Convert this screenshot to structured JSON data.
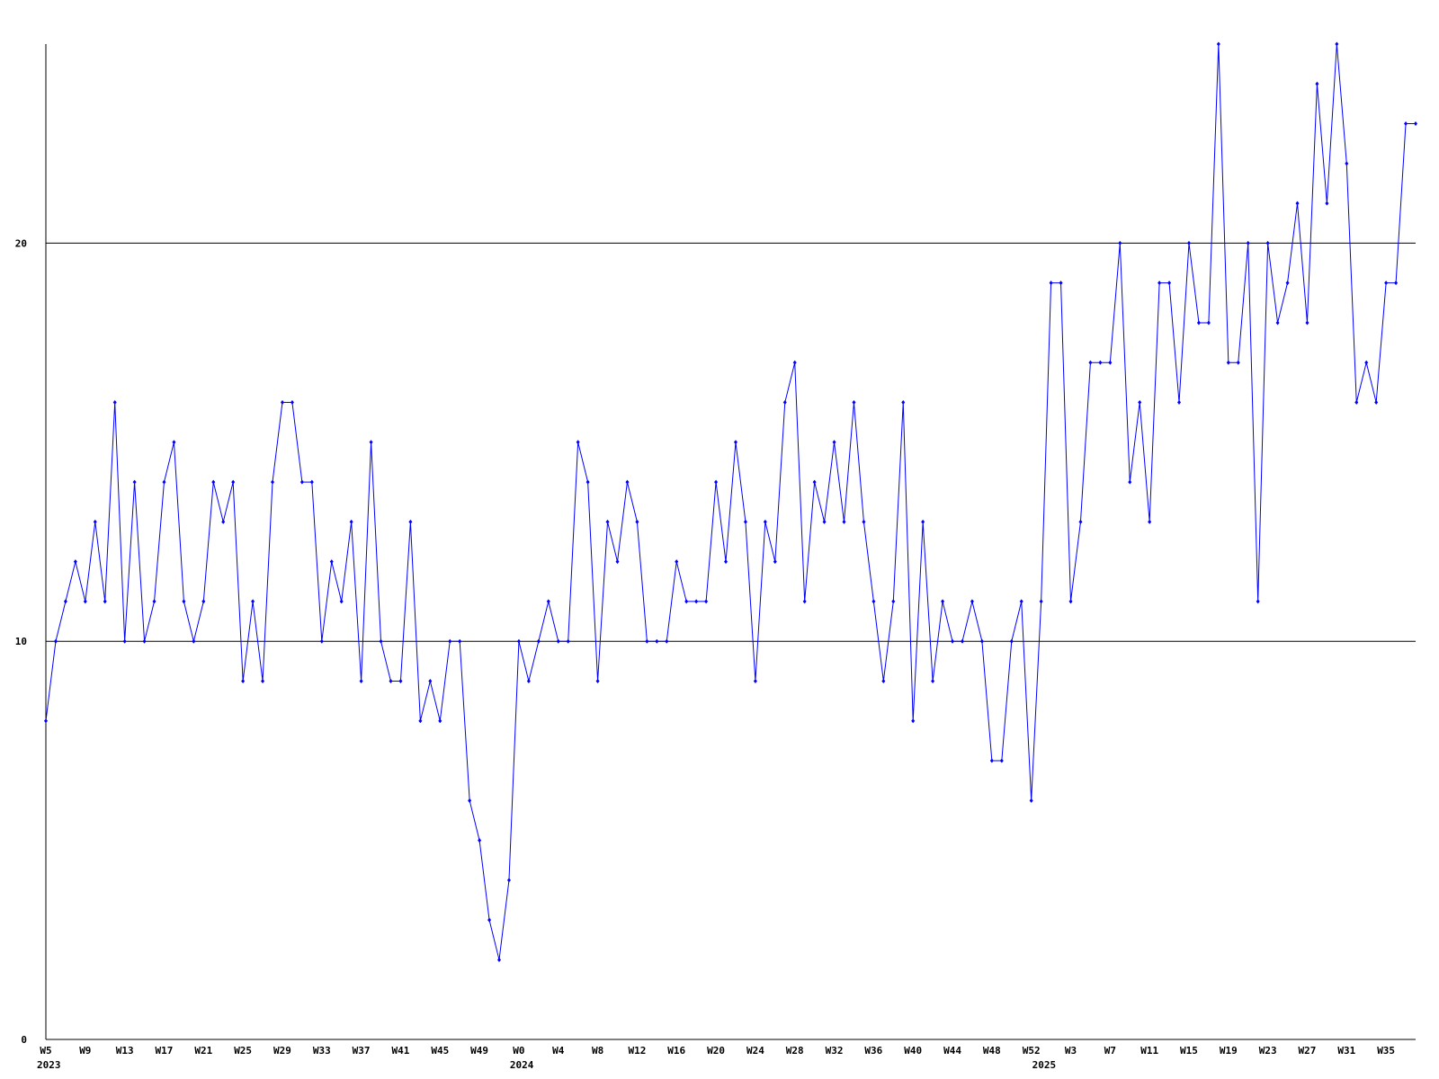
{
  "chart_data": {
    "type": "line",
    "categories": [
      "W5",
      null,
      null,
      null,
      "W9",
      null,
      null,
      null,
      "W13",
      null,
      null,
      null,
      "W17",
      null,
      null,
      null,
      "W21",
      null,
      null,
      null,
      "W25",
      null,
      null,
      null,
      "W29",
      null,
      null,
      null,
      "W33",
      null,
      null,
      null,
      "W37",
      null,
      null,
      null,
      "W41",
      null,
      null,
      null,
      "W45",
      null,
      null,
      null,
      "W49",
      null,
      null,
      null,
      "W0",
      null,
      null,
      null,
      "W4",
      null,
      null,
      null,
      "W8",
      null,
      null,
      null,
      "W12",
      null,
      null,
      null,
      "W16",
      null,
      null,
      null,
      "W20",
      null,
      null,
      null,
      "W24",
      null,
      null,
      null,
      "W28",
      null,
      null,
      null,
      "W32",
      null,
      null,
      null,
      "W36",
      null,
      null,
      null,
      "W40",
      null,
      null,
      null,
      "W44",
      null,
      null,
      null,
      "W48",
      null,
      null,
      null,
      "W52",
      null,
      null,
      null,
      "W3",
      null,
      null,
      null,
      "W7",
      null,
      null,
      null,
      "W11",
      null,
      null,
      null,
      "W15",
      null,
      null,
      null,
      "W19",
      null,
      null,
      null,
      "W23",
      null,
      null,
      null,
      "W27",
      null,
      null,
      null,
      "W31",
      null,
      null,
      null,
      "W35",
      null,
      null,
      null
    ],
    "year_labels": [
      "2023",
      null,
      null,
      null,
      null,
      null,
      null,
      null,
      null,
      null,
      null,
      null,
      null,
      null,
      null,
      null,
      null,
      null,
      null,
      null,
      null,
      null,
      null,
      null,
      null,
      null,
      null,
      null,
      null,
      null,
      null,
      null,
      null,
      null,
      null,
      null,
      null,
      null,
      null,
      null,
      null,
      null,
      null,
      null,
      null,
      null,
      null,
      null,
      "2024",
      null,
      null,
      null,
      null,
      null,
      null,
      null,
      null,
      null,
      null,
      null,
      null,
      null,
      null,
      null,
      null,
      null,
      null,
      null,
      null,
      null,
      null,
      null,
      null,
      null,
      null,
      null,
      null,
      null,
      null,
      null,
      null,
      null,
      null,
      null,
      null,
      null,
      null,
      null,
      null,
      null,
      null,
      null,
      null,
      null,
      null,
      null,
      null,
      null,
      null,
      null,
      null,
      "2025",
      null,
      null,
      null,
      null,
      null,
      null,
      null,
      null,
      null,
      null,
      null,
      null,
      null,
      null,
      null,
      null,
      null,
      null,
      null,
      null,
      null,
      null,
      null,
      null,
      null,
      null,
      null,
      null,
      null,
      null,
      null,
      null,
      null,
      null,
      null,
      null,
      null,
      null
    ],
    "series": [
      {
        "color": "#0000ff",
        "values": [
          8,
          10,
          11,
          12,
          11,
          13,
          11,
          16,
          10,
          14,
          10,
          11,
          14,
          15,
          11,
          10,
          11,
          14,
          13,
          14,
          9,
          11,
          9,
          14,
          16,
          16,
          14,
          14,
          10,
          12,
          11,
          13,
          9,
          15,
          10,
          9,
          9,
          13,
          8,
          9,
          8,
          10,
          10,
          6,
          5,
          3,
          2,
          4,
          10,
          9,
          10,
          11,
          10,
          10,
          15,
          14,
          9,
          13,
          12,
          14,
          13,
          10,
          10,
          10,
          12,
          11,
          11,
          11,
          14,
          12,
          15,
          13,
          9,
          13,
          12,
          16,
          17,
          11,
          14,
          13,
          15,
          13,
          16,
          13,
          11,
          9,
          11,
          16,
          8,
          13,
          9,
          11,
          10,
          10,
          11,
          10,
          7,
          7,
          10,
          11,
          6,
          11,
          19,
          19,
          11,
          13,
          17,
          17,
          17,
          20,
          14,
          16,
          13,
          19,
          19,
          16,
          20,
          18,
          18,
          25,
          17,
          17,
          20,
          11,
          20,
          18,
          19,
          21,
          18,
          24,
          21,
          25,
          22,
          16,
          17,
          16,
          19,
          19,
          23,
          23
        ]
      }
    ],
    "ylim": [
      0,
      25
    ],
    "yticks": [
      0,
      10,
      20
    ],
    "grid": true
  }
}
